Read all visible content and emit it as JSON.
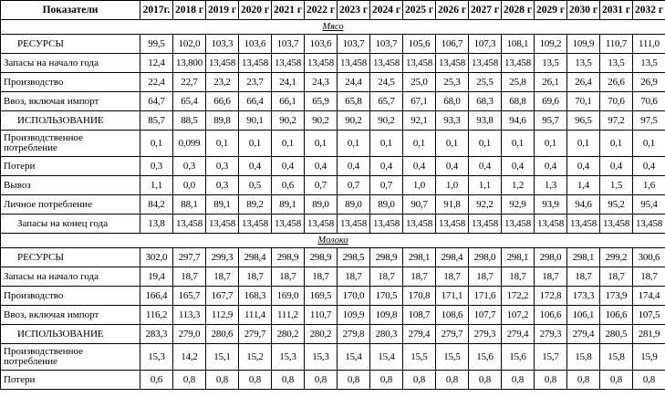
{
  "table": {
    "header": [
      "Показатели",
      "2017г.",
      "2018 г",
      "2019 г",
      "2020 г",
      "2021 г",
      "2022 г",
      "2023 г",
      "2024 г",
      "2025 г",
      "2026 г",
      "2027 г",
      "2028 г",
      "2029 г",
      "2030 г",
      "2031 г",
      "2032 г"
    ],
    "sections": [
      {
        "title": "Мясо",
        "rows": [
          {
            "label": "РЕСУРСЫ",
            "values": [
              "99,5",
              "102,0",
              "103,3",
              "103,6",
              "103,7",
              "103,6",
              "103,7",
              "103,7",
              "105,6",
              "106,7",
              "107,3",
              "108,1",
              "109,2",
              "109,9",
              "110,7",
              "111,0"
            ]
          },
          {
            "label": "Запасы на начало года",
            "values": [
              "12,4",
              "13,800",
              "13,458",
              "13,458",
              "13,458",
              "13,458",
              "13,458",
              "13,458",
              "13,458",
              "13,458",
              "13,458",
              "13,458",
              "13,5",
              "13,5",
              "13,5",
              "13,5"
            ]
          },
          {
            "label": "Производство",
            "values": [
              "22,4",
              "22,7",
              "23,2",
              "23,7",
              "24,1",
              "24,3",
              "24,4",
              "24,5",
              "25,0",
              "25,3",
              "25,5",
              "25,8",
              "26,1",
              "26,4",
              "26,6",
              "26,9"
            ]
          },
          {
            "label": "Ввоз, включая импорт",
            "values": [
              "64,7",
              "65,4",
              "66,6",
              "66,4",
              "66,1",
              "65,9",
              "65,8",
              "65,7",
              "67,1",
              "68,0",
              "68,3",
              "68,8",
              "69,6",
              "70,1",
              "70,6",
              "70,6"
            ]
          },
          {
            "label": "ИСПОЛЬЗОВАНИЕ",
            "values": [
              "85,7",
              "88,5",
              "89,8",
              "90,1",
              "90,2",
              "90,2",
              "90,2",
              "90,2",
              "92,1",
              "93,3",
              "93,8",
              "94,6",
              "95,7",
              "96,5",
              "97,2",
              "97,5"
            ]
          },
          {
            "label": "Производственное потребление",
            "values": [
              "0,1",
              "0,099",
              "0,1",
              "0,1",
              "0,1",
              "0,1",
              "0,1",
              "0,1",
              "0,1",
              "0,1",
              "0,1",
              "0,1",
              "0,1",
              "0,1",
              "0,1",
              "0,1"
            ]
          },
          {
            "label": "Потери",
            "values": [
              "0,3",
              "0,3",
              "0,3",
              "0,4",
              "0,4",
              "0,4",
              "0,4",
              "0,4",
              "0,4",
              "0,4",
              "0,4",
              "0,4",
              "0,4",
              "0,4",
              "0,4",
              "0,4"
            ]
          },
          {
            "label": "Вывоз",
            "values": [
              "1,1",
              "0,0",
              "0,3",
              "0,5",
              "0,6",
              "0,7",
              "0,7",
              "0,7",
              "1,0",
              "1,0",
              "1,1",
              "1,2",
              "1,3",
              "1,4",
              "1,5",
              "1,6"
            ]
          },
          {
            "label": "Личное потребление",
            "values": [
              "84,2",
              "88,1",
              "89,1",
              "89,2",
              "89,1",
              "89,0",
              "89,0",
              "89,0",
              "90,7",
              "91,8",
              "92,2",
              "92,9",
              "93,9",
              "94,6",
              "95,2",
              "95,4"
            ]
          },
          {
            "label": "Запасы на конец года",
            "values": [
              "13,8",
              "13,458",
              "13,458",
              "13,458",
              "13,458",
              "13,458",
              "13,458",
              "13,458",
              "13,458",
              "13,458",
              "13,458",
              "13,458",
              "13,458",
              "13,458",
              "13,458",
              "13,458"
            ]
          }
        ]
      },
      {
        "title": "Молоко",
        "rows": [
          {
            "label": "РЕСУРСЫ",
            "values": [
              "302,0",
              "297,7",
              "299,3",
              "298,4",
              "298,9",
              "298,9",
              "298,5",
              "298,9",
              "298,1",
              "298,4",
              "298,0",
              "298,1",
              "298,0",
              "298,1",
              "299,2",
              "300,6"
            ]
          },
          {
            "label": "Запасы на начало года",
            "values": [
              "19,4",
              "18,7",
              "18,7",
              "18,7",
              "18,7",
              "18,7",
              "18,7",
              "18,7",
              "18,7",
              "18,7",
              "18,7",
              "18,7",
              "18,7",
              "18,7",
              "18,7",
              "18,7"
            ]
          },
          {
            "label": "Производство",
            "values": [
              "166,4",
              "165,7",
              "167,7",
              "168,3",
              "169,0",
              "169,5",
              "170,0",
              "170,5",
              "170,8",
              "171,1",
              "171,6",
              "172,2",
              "172,8",
              "173,3",
              "173,9",
              "174,4"
            ]
          },
          {
            "label": "Ввоз, включая импорт",
            "values": [
              "116,2",
              "113,3",
              "112,9",
              "111,4",
              "111,2",
              "110,7",
              "109,9",
              "109,8",
              "108,7",
              "108,6",
              "107,7",
              "107,2",
              "106,6",
              "106,1",
              "106,6",
              "107,5"
            ]
          },
          {
            "label": "ИСПОЛЬЗОВАНИЕ",
            "values": [
              "283,3",
              "279,0",
              "280,6",
              "279,7",
              "280,2",
              "280,2",
              "279,8",
              "280,3",
              "279,4",
              "279,7",
              "279,3",
              "279,4",
              "279,3",
              "279,4",
              "280,5",
              "281,9"
            ]
          },
          {
            "label": "Производственное потребление",
            "values": [
              "15,3",
              "14,2",
              "15,1",
              "15,2",
              "15,3",
              "15,3",
              "15,4",
              "15,4",
              "15,5",
              "15,5",
              "15,6",
              "15,6",
              "15,7",
              "15,8",
              "15,8",
              "15,9"
            ]
          },
          {
            "label": "Потери",
            "values": [
              "0,6",
              "0,8",
              "0,8",
              "0,8",
              "0,8",
              "0,8",
              "0,8",
              "0,8",
              "0,8",
              "0,8",
              "0,8",
              "0,8",
              "0,8",
              "0,8",
              "0,8",
              "0,8"
            ]
          }
        ]
      }
    ]
  }
}
